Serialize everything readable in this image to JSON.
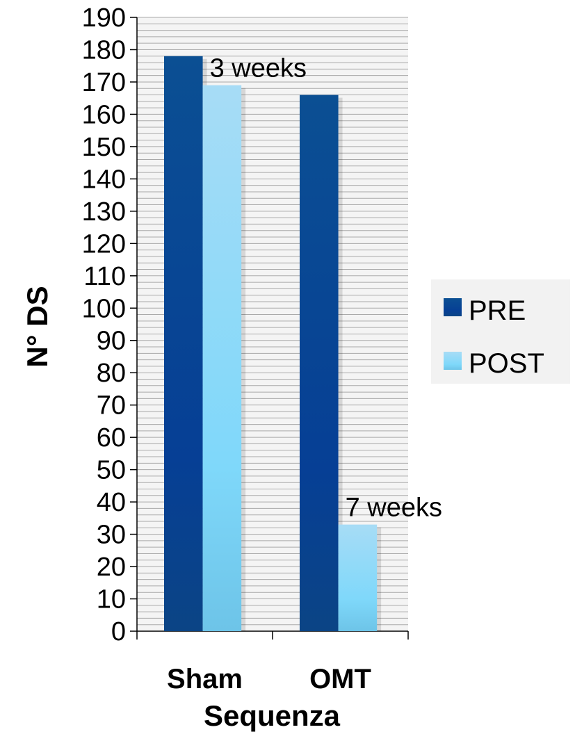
{
  "chart_data": {
    "type": "bar",
    "title": "",
    "xlabel": "Sequenza",
    "ylabel": "N° DS",
    "categories": [
      "Sham",
      "OMT"
    ],
    "series": [
      {
        "name": "PRE",
        "values": [
          178,
          166
        ],
        "color": "#0b4a91"
      },
      {
        "name": "POST",
        "values": [
          169,
          33
        ],
        "color": "#8fd3f5"
      }
    ],
    "ylim": [
      0,
      190
    ],
    "yticks": [
      0,
      10,
      20,
      30,
      40,
      50,
      60,
      70,
      80,
      90,
      100,
      110,
      120,
      130,
      140,
      150,
      160,
      170,
      180,
      190
    ],
    "grid": true,
    "legend_position": "right",
    "annotations": [
      {
        "text": "3 weeks",
        "category": "Sham",
        "series": "POST"
      },
      {
        "text": "7 weeks",
        "category": "OMT",
        "series": "POST"
      }
    ]
  }
}
